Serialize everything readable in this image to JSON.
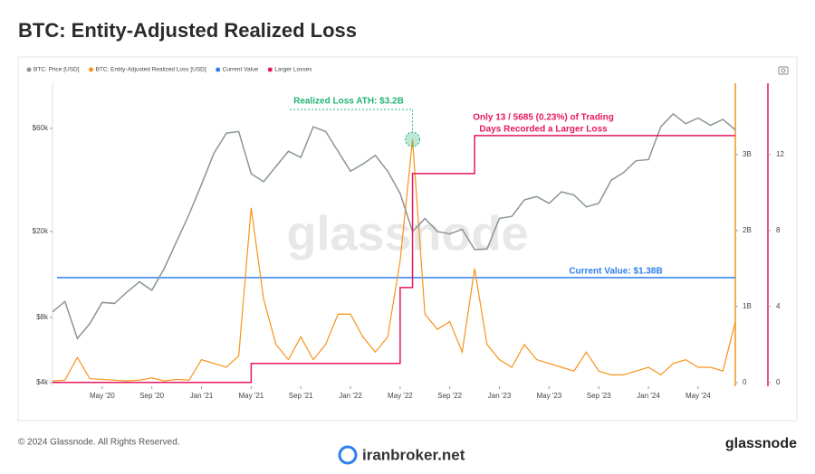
{
  "page": {
    "title": "BTC: Entity-Adjusted Realized Loss",
    "copyright": "© 2024 Glassnode. All Rights Reserved.",
    "brand": "glassnode",
    "watermark": "glassnode",
    "site": "iranbroker.net"
  },
  "chart_data": {
    "type": "line",
    "x": [
      "2020-01",
      "2020-02",
      "2020-03",
      "2020-04",
      "2020-05",
      "2020-06",
      "2020-07",
      "2020-08",
      "2020-09",
      "2020-10",
      "2020-11",
      "2020-12",
      "2021-01",
      "2021-02",
      "2021-03",
      "2021-04",
      "2021-05",
      "2021-06",
      "2021-07",
      "2021-08",
      "2021-09",
      "2021-10",
      "2021-11",
      "2021-12",
      "2022-01",
      "2022-02",
      "2022-03",
      "2022-04",
      "2022-05",
      "2022-06",
      "2022-07",
      "2022-08",
      "2022-09",
      "2022-10",
      "2022-11",
      "2022-12",
      "2023-01",
      "2023-02",
      "2023-03",
      "2023-04",
      "2023-05",
      "2023-06",
      "2023-07",
      "2023-08",
      "2023-09",
      "2023-10",
      "2023-11",
      "2023-12",
      "2024-01",
      "2024-02",
      "2024-03",
      "2024-04",
      "2024-05",
      "2024-06",
      "2024-07",
      "2024-08"
    ],
    "xlim": [
      "2020-01",
      "2024-08"
    ],
    "xticks": [
      {
        "value": "2020-05",
        "label": "May '20"
      },
      {
        "value": "2020-09",
        "label": "Sep '20"
      },
      {
        "value": "2021-01",
        "label": "Jan '21"
      },
      {
        "value": "2021-05",
        "label": "May '21"
      },
      {
        "value": "2021-09",
        "label": "Sep '21"
      },
      {
        "value": "2022-01",
        "label": "Jan '22"
      },
      {
        "value": "2022-05",
        "label": "May '22"
      },
      {
        "value": "2022-09",
        "label": "Sep '22"
      },
      {
        "value": "2023-01",
        "label": "Jan '23"
      },
      {
        "value": "2023-05",
        "label": "May '23"
      },
      {
        "value": "2023-09",
        "label": "Sep '23"
      },
      {
        "value": "2024-01",
        "label": "Jan '24"
      },
      {
        "value": "2024-05",
        "label": "May '24"
      }
    ],
    "yscale": "log",
    "ylim": [
      3850,
      97000
    ],
    "yticks": [
      {
        "value": 4000,
        "label": "$4k"
      },
      {
        "value": 8000,
        "label": "$8k"
      },
      {
        "value": 20000,
        "label": "$20k"
      },
      {
        "value": 60000,
        "label": "$60k"
      }
    ],
    "y2lim": [
      -0.05,
      3.94
    ],
    "y2ticks": [
      0,
      {
        "value": 1,
        "label": "1B"
      },
      {
        "value": 2,
        "label": "2B"
      },
      {
        "value": 3,
        "label": "3B"
      }
    ],
    "y3lim": [
      -0.2,
      15.76
    ],
    "y3ticks": [
      0,
      4,
      8,
      12
    ],
    "series": [
      {
        "name": "BTC: Price [USD]",
        "color": "#8a9597",
        "axis": "y",
        "values": [
          8500,
          9500,
          6400,
          7500,
          9400,
          9300,
          10500,
          11700,
          10700,
          13500,
          18000,
          24000,
          33000,
          46000,
          57000,
          58000,
          37000,
          34000,
          40000,
          47000,
          44000,
          61000,
          58000,
          47000,
          38000,
          41000,
          45000,
          38000,
          30000,
          20000,
          23000,
          20000,
          19500,
          20500,
          16500,
          16600,
          23000,
          23500,
          28000,
          29000,
          27000,
          30500,
          29500,
          26000,
          27000,
          34500,
          37500,
          42500,
          43000,
          61000,
          70000,
          63000,
          67000,
          62000,
          66000,
          59000
        ]
      },
      {
        "name": "BTC: Entity-Adjusted Realized Loss [USD]",
        "color": "#f7931a",
        "axis": "y2",
        "values": [
          0.02,
          0.03,
          0.33,
          0.05,
          0.04,
          0.03,
          0.02,
          0.03,
          0.06,
          0.02,
          0.04,
          0.03,
          0.3,
          0.25,
          0.2,
          0.35,
          2.3,
          1.1,
          0.5,
          0.3,
          0.6,
          0.3,
          0.5,
          0.9,
          0.9,
          0.6,
          0.4,
          0.6,
          1.6,
          3.2,
          0.9,
          0.7,
          0.8,
          0.4,
          1.5,
          0.5,
          0.3,
          0.2,
          0.5,
          0.3,
          0.25,
          0.2,
          0.15,
          0.4,
          0.15,
          0.1,
          0.1,
          0.15,
          0.2,
          0.1,
          0.25,
          0.3,
          0.2,
          0.2,
          0.15,
          0.8
        ]
      },
      {
        "name": "Larger Losses",
        "color": "#e8175d",
        "axis": "y3",
        "values": [
          0,
          0,
          0,
          0,
          0,
          0,
          0,
          0,
          0,
          0,
          0,
          0,
          0,
          0,
          0,
          0,
          1,
          1,
          1,
          1,
          1,
          1,
          1,
          1,
          1,
          1,
          1,
          1,
          5,
          11,
          11,
          11,
          11,
          11,
          13,
          13,
          13,
          13,
          13,
          13,
          13,
          13,
          13,
          13,
          13,
          13,
          13,
          13,
          13,
          13,
          13,
          13,
          13,
          13,
          13,
          13
        ]
      }
    ],
    "reference_line": {
      "name": "Current Value",
      "color": "#2f80ed",
      "axis": "y2",
      "value": 1.38
    },
    "annotations": [
      {
        "text": "Realized Loss ATH: $3.2B",
        "color": "#22b573"
      },
      {
        "text": "Only 13 / 5685 (0.23%) of Trading",
        "color": "#e8175d"
      },
      {
        "text": "Days Recorded a Larger Loss",
        "color": "#e8175d"
      },
      {
        "text": "Current Value: $1.38B",
        "color": "#2f80ed"
      }
    ]
  }
}
